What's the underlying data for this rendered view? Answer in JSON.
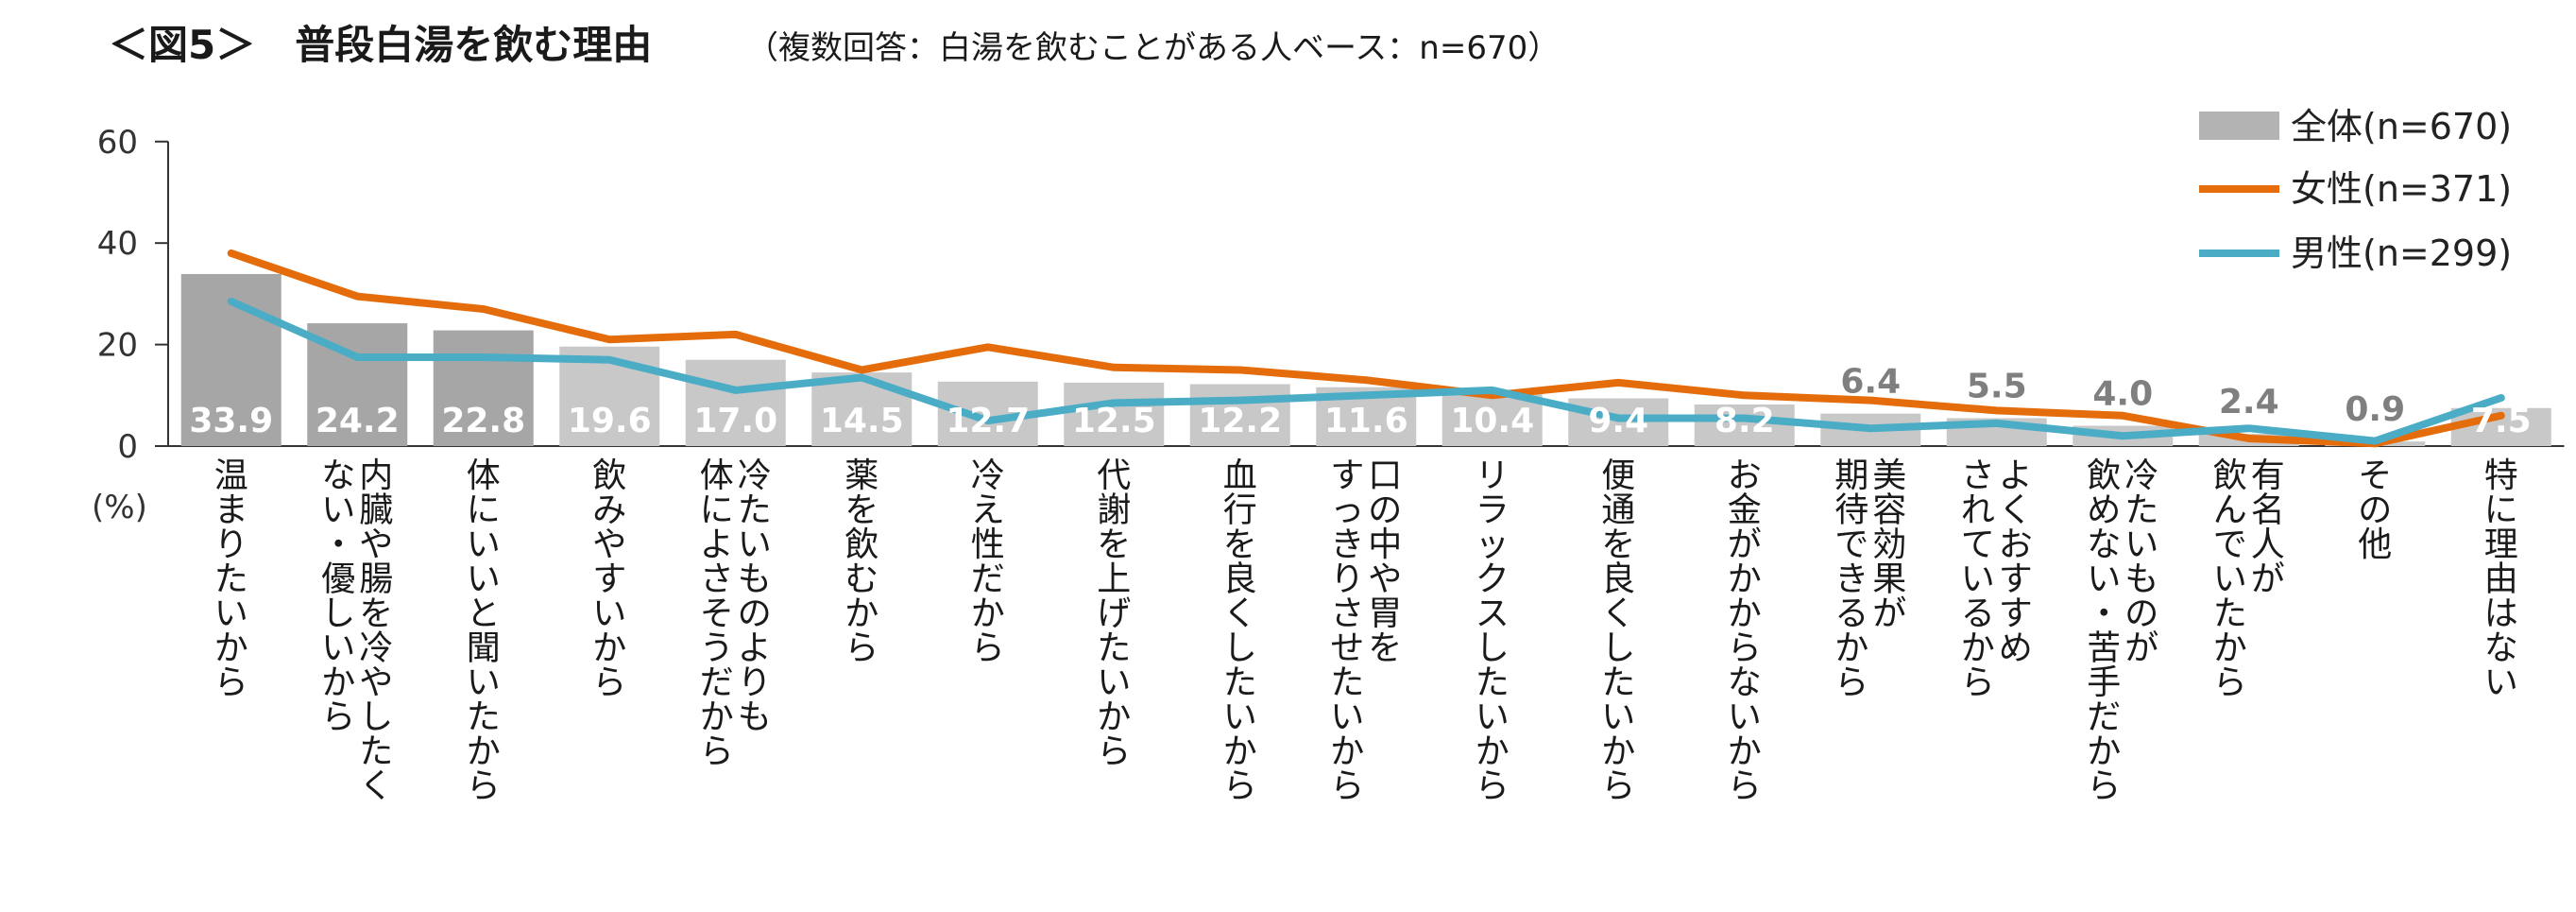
{
  "chart_data": {
    "type": "bar",
    "title": "＜図5＞　普段白湯を飲む理由",
    "subtitle": "（複数回答：白湯を飲むことがある人ベース：n=670）",
    "ylabel": "(%)",
    "ylim": [
      0,
      60
    ],
    "yticks": [
      "0",
      "20",
      "40",
      "60"
    ],
    "legend_position": "top-right",
    "categories": [
      "温まりたいから",
      "内臓や腸を冷やしたくない・優しいから",
      "体にいいと聞いたから",
      "飲みやすいから",
      "冷たいものよりも体によさそうだから",
      "薬を飲むから",
      "冷え性だから",
      "代謝を上げたいから",
      "血行を良くしたいから",
      "口の中や胃をすっきりさせたいから",
      "リラックスしたいから",
      "便通を良くしたいから",
      "お金がかからないから",
      "美容効果が期待できるから",
      "よくおすすめされているから",
      "冷たいものが飲めない・苦手だから",
      "有名人が飲んでいたから",
      "その他",
      "特に理由はない"
    ],
    "category_columns": [
      [
        "温まりたいから"
      ],
      [
        "内臓や腸を冷やしたく",
        "ない・優しいから"
      ],
      [
        "体にいいと聞いたから"
      ],
      [
        "飲みやすいから"
      ],
      [
        "冷たいものよりも",
        "体によさそうだから"
      ],
      [
        "薬を飲むから"
      ],
      [
        "冷え性だから"
      ],
      [
        "代謝を上げたいから"
      ],
      [
        "血行を良くしたいから"
      ],
      [
        "口の中や胃を",
        "すっきりさせたいから"
      ],
      [
        "リラックスしたいから"
      ],
      [
        "便通を良くしたいから"
      ],
      [
        "お金がかからないから"
      ],
      [
        "美容効果が",
        "期待できるから"
      ],
      [
        "よくおすすめ",
        "されているから"
      ],
      [
        "冷たいものが",
        "飲めない・苦手だから"
      ],
      [
        "有名人が",
        "飲んでいたから"
      ],
      [
        "その他"
      ],
      [
        "特に理由はない"
      ]
    ],
    "series": [
      {
        "name": "全体(n=670)",
        "kind": "bar",
        "values": [
          33.9,
          24.2,
          22.8,
          19.6,
          17.0,
          14.5,
          12.7,
          12.5,
          12.2,
          11.6,
          10.4,
          9.4,
          8.2,
          6.4,
          5.5,
          4.0,
          2.4,
          0.9,
          7.5
        ],
        "labels": [
          "33.9",
          "24.2",
          "22.8",
          "19.6",
          "17.0",
          "14.5",
          "12.7",
          "12.5",
          "12.2",
          "11.6",
          "10.4",
          "9.4",
          "8.2",
          "6.4",
          "5.5",
          "4.0",
          "2.4",
          "0.9",
          "7.5"
        ],
        "color_dark": "#a6a6a6",
        "color_light": "#c8c8c8"
      },
      {
        "name": "女性(n=371)",
        "kind": "line",
        "values": [
          38,
          29.5,
          27,
          21,
          22,
          15,
          19.5,
          15.5,
          15,
          13,
          10,
          12.5,
          10,
          9,
          7,
          6,
          1.5,
          0.5,
          6
        ],
        "color": "#e46c0a"
      },
      {
        "name": "男性(n=299)",
        "kind": "line",
        "values": [
          28.5,
          17.5,
          17.5,
          17,
          11,
          13.5,
          5,
          8.5,
          9,
          10,
          11,
          5.5,
          5.5,
          3.5,
          4.5,
          2,
          3.5,
          1,
          9.5
        ],
        "color": "#4bacc6"
      }
    ]
  }
}
